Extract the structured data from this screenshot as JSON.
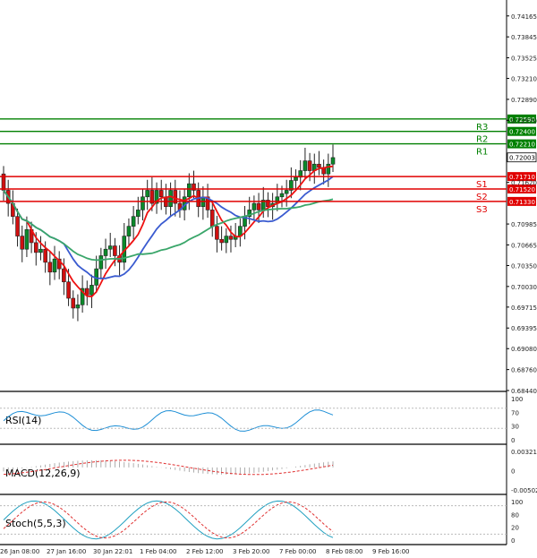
{
  "chart_data": {
    "type": "candlestick",
    "instrument": "AUDUSD",
    "y_axis_ticks": [
      "0.74165",
      "0.73845",
      "0.73525",
      "0.73210",
      "0.72890",
      "0.72570",
      "0.71620",
      "0.70985",
      "0.70665",
      "0.70350",
      "0.70030",
      "0.69715",
      "0.69395",
      "0.69080",
      "0.68760",
      "0.68440"
    ],
    "x_axis_ticks": [
      "26 Jan 08:00",
      "27 Jan 16:00",
      "30 Jan 22:01",
      "1 Feb 04:00",
      "2 Feb 12:00",
      "3 Feb 20:00",
      "7 Feb 00:00",
      "8 Feb 08:00",
      "9 Feb 16:00"
    ],
    "ylim": [
      0.6844,
      0.7434
    ],
    "current_price": {
      "value": "0.72003",
      "price": 0.72003,
      "color": "#000000"
    },
    "levels": [
      {
        "label": "R3",
        "value": "0.72590",
        "price": 0.7259,
        "color": "#008000"
      },
      {
        "label": "R2",
        "value": "0.72400",
        "price": 0.724,
        "color": "#008000"
      },
      {
        "label": "R1",
        "value": "0.72210",
        "price": 0.7221,
        "color": "#008000"
      },
      {
        "label": "S1",
        "value": "0.71710",
        "price": 0.7171,
        "color": "#e00000"
      },
      {
        "label": "S2",
        "value": "0.71520",
        "price": 0.7152,
        "color": "#e00000"
      },
      {
        "label": "S3",
        "value": "0.71330",
        "price": 0.7133,
        "color": "#e00000"
      }
    ],
    "candles_close": [
      0.715,
      0.713,
      0.711,
      0.708,
      0.706,
      0.709,
      0.707,
      0.7055,
      0.706,
      0.704,
      0.7025,
      0.7045,
      0.703,
      0.701,
      0.6985,
      0.697,
      0.6975,
      0.7,
      0.699,
      0.7005,
      0.703,
      0.705,
      0.706,
      0.7065,
      0.705,
      0.704,
      0.708,
      0.7095,
      0.711,
      0.712,
      0.714,
      0.715,
      0.713,
      0.715,
      0.714,
      0.7125,
      0.715,
      0.713,
      0.712,
      0.714,
      0.716,
      0.715,
      0.7125,
      0.714,
      0.712,
      0.7095,
      0.7075,
      0.707,
      0.708,
      0.7075,
      0.708,
      0.7095,
      0.711,
      0.712,
      0.713,
      0.712,
      0.7135,
      0.7125,
      0.713,
      0.714,
      0.7145,
      0.715,
      0.7165,
      0.717,
      0.718,
      0.7195,
      0.718,
      0.719,
      0.7185,
      0.7175,
      0.719,
      0.72
    ],
    "series": [
      {
        "name": "MA fast (red)",
        "color": "#ee1111"
      },
      {
        "name": "MA medium (blue)",
        "color": "#3a5bd0"
      },
      {
        "name": "MA slow (green)",
        "color": "#3aa66a"
      }
    ],
    "indicators": [
      {
        "name": "RSI(14)",
        "ticks": [
          "100",
          "70",
          "30",
          "0"
        ]
      },
      {
        "name": "MACD(12,26,9)",
        "ticks": [
          "0.003217",
          "0",
          "-0.005021"
        ]
      },
      {
        "name": "Stoch(5,5,3)",
        "ticks": [
          "100",
          "80",
          "20",
          "0"
        ]
      }
    ]
  }
}
